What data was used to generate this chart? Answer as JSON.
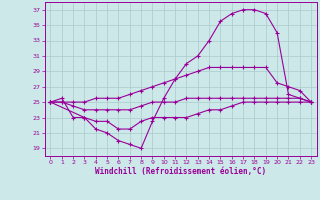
{
  "xlabel": "Windchill (Refroidissement éolien,°C)",
  "background_color": "#cce8e8",
  "grid_color": "#aacccc",
  "line_color": "#990099",
  "xlim": [
    -0.5,
    23.5
  ],
  "ylim": [
    18,
    38
  ],
  "xticks": [
    0,
    1,
    2,
    3,
    4,
    5,
    6,
    7,
    8,
    9,
    10,
    11,
    12,
    13,
    14,
    15,
    16,
    17,
    18,
    19,
    20,
    21,
    22,
    23
  ],
  "yticks": [
    19,
    21,
    23,
    25,
    27,
    29,
    31,
    33,
    35,
    37
  ],
  "line1_x": [
    0,
    3,
    4,
    5,
    6,
    7,
    8,
    9,
    10,
    11,
    12,
    13,
    14,
    15,
    16,
    17,
    18,
    19,
    20,
    21,
    22,
    23
  ],
  "line1_y": [
    25,
    23,
    21.5,
    21,
    20,
    19.5,
    19,
    22.5,
    25.5,
    28,
    30,
    31,
    33,
    35.5,
    36.5,
    37,
    37,
    36.5,
    34,
    26,
    25.5,
    25
  ],
  "line2_x": [
    0,
    1,
    2,
    3,
    4,
    5,
    6,
    7,
    8,
    9,
    10,
    11,
    12,
    13,
    14,
    15,
    16,
    17,
    18,
    19,
    20,
    21,
    22,
    23
  ],
  "line2_y": [
    25,
    25,
    25,
    25,
    25.5,
    25.5,
    25.5,
    26,
    26.5,
    27,
    27.5,
    28,
    28.5,
    29,
    29.5,
    29.5,
    29.5,
    29.5,
    29.5,
    29.5,
    27.5,
    27,
    26.5,
    25
  ],
  "line3_x": [
    0,
    1,
    2,
    3,
    4,
    5,
    6,
    7,
    8,
    9,
    10,
    11,
    12,
    13,
    14,
    15,
    16,
    17,
    18,
    19,
    20,
    21,
    22,
    23
  ],
  "line3_y": [
    25,
    25,
    24.5,
    24,
    24,
    24,
    24,
    24,
    24.5,
    25,
    25,
    25,
    25.5,
    25.5,
    25.5,
    25.5,
    25.5,
    25.5,
    25.5,
    25.5,
    25.5,
    25.5,
    25.5,
    25
  ],
  "line4_x": [
    0,
    1,
    2,
    3,
    4,
    5,
    6,
    7,
    8,
    9,
    10,
    11,
    12,
    13,
    14,
    15,
    16,
    17,
    18,
    19,
    20,
    21,
    22,
    23
  ],
  "line4_y": [
    25,
    25.5,
    23,
    23,
    22.5,
    22.5,
    21.5,
    21.5,
    22.5,
    23,
    23,
    23,
    23,
    23.5,
    24,
    24,
    24.5,
    25,
    25,
    25,
    25,
    25,
    25,
    25
  ]
}
